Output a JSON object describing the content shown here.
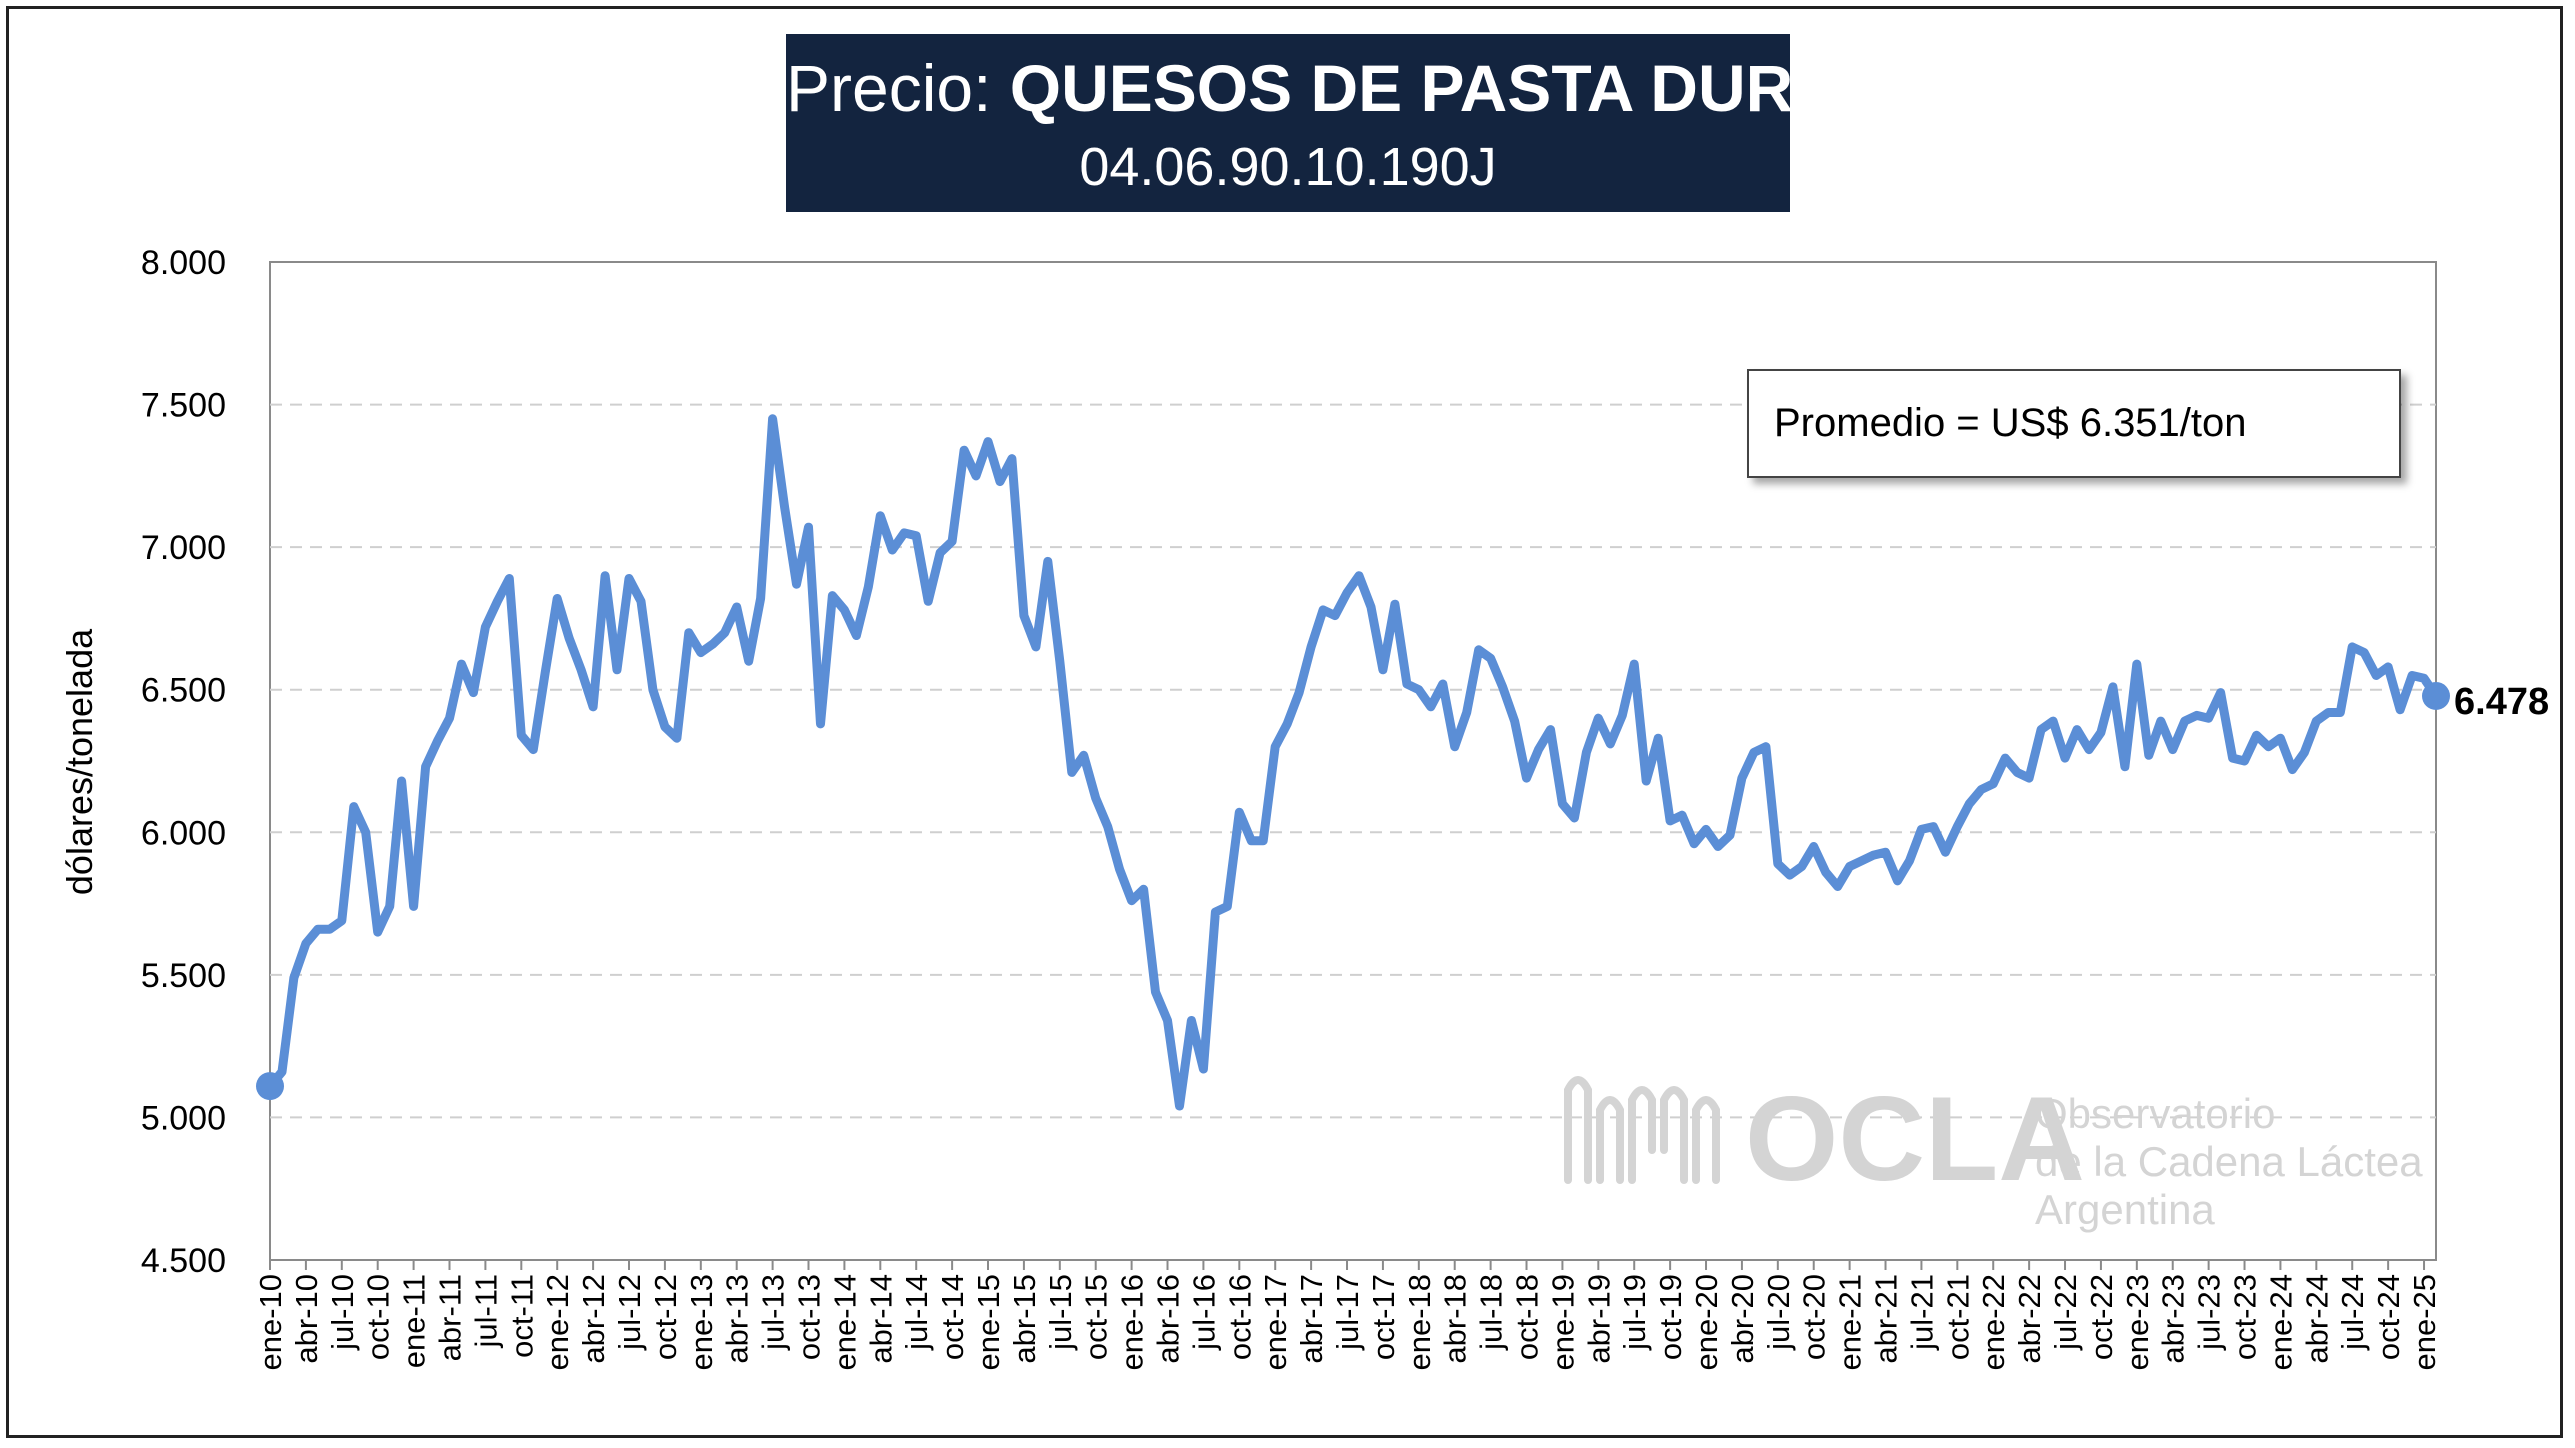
{
  "title": {
    "prefix": "Precio: ",
    "product": "QUESOS DE PASTA DURA",
    "code": "04.06.90.10.190J",
    "background": "#13243f"
  },
  "annotation": {
    "average_text": "Promedio = US$ 6.351/ton"
  },
  "end_label": "6.478",
  "watermark": {
    "logo": "OCLA",
    "line1": "Observatorio",
    "line2": "de la Cadena Láctea",
    "line3": "Argentina",
    "icon": "milk-wave-logo-icon"
  },
  "colors": {
    "line": "#5b8ed6",
    "grid": "#cfcfcf",
    "watermark": "#d4d4d4"
  },
  "chart_data": {
    "type": "line",
    "ylabel": "dólares/tonelada",
    "ylim": [
      4500,
      8000
    ],
    "yticks": [
      4500,
      5000,
      5500,
      6000,
      6500,
      7000,
      7500,
      8000
    ],
    "ytick_labels": [
      "4.500",
      "5.000",
      "5.500",
      "6.000",
      "6.500",
      "7.000",
      "7.500",
      "8.000"
    ],
    "xtick_labels": [
      "ene-10",
      "abr-10",
      "jul-10",
      "oct-10",
      "ene-11",
      "abr-11",
      "jul-11",
      "oct-11",
      "ene-12",
      "abr-12",
      "jul-12",
      "oct-12",
      "ene-13",
      "abr-13",
      "jul-13",
      "oct-13",
      "ene-14",
      "abr-14",
      "jul-14",
      "oct-14",
      "ene-15",
      "abr-15",
      "jul-15",
      "oct-15",
      "ene-16",
      "abr-16",
      "jul-16",
      "oct-16",
      "ene-17",
      "abr-17",
      "jul-17",
      "oct-17",
      "ene-18",
      "abr-18",
      "jul-18",
      "oct-18",
      "ene-19",
      "abr-19",
      "jul-19",
      "oct-19",
      "ene-20",
      "abr-20",
      "jul-20",
      "oct-20",
      "ene-21",
      "abr-21",
      "jul-21",
      "oct-21",
      "ene-22",
      "abr-22",
      "jul-22",
      "oct-22",
      "ene-23",
      "abr-23",
      "jul-23",
      "oct-23",
      "ene-24",
      "abr-24",
      "jul-24",
      "oct-24",
      "ene-25"
    ],
    "grid": "horizontal dashed",
    "series": [
      {
        "values": [
          5110,
          5160,
          5490,
          5610,
          5660,
          5660,
          5690,
          6090,
          6000,
          5650,
          5740,
          6180,
          5740,
          6230,
          6320,
          6400,
          6590,
          6490,
          6720,
          6810,
          6890,
          6340,
          6290,
          6560,
          6820,
          6680,
          6570,
          6440,
          6900,
          6570,
          6890,
          6810,
          6500,
          6370,
          6330,
          6700,
          6630,
          6660,
          6700,
          6790,
          6600,
          6820,
          7450,
          7140,
          6870,
          7070,
          6380,
          6830,
          6780,
          6690,
          6860,
          7110,
          6990,
          7050,
          7040,
          6810,
          6980,
          7020,
          7340,
          7250,
          7370,
          7230,
          7310,
          6760,
          6650,
          6950,
          6600,
          6210,
          6270,
          6120,
          6020,
          5870,
          5760,
          5800,
          5440,
          5340,
          5040,
          5340,
          5170,
          5720,
          5740,
          6070,
          5970,
          5970,
          6300,
          6380,
          6490,
          6650,
          6780,
          6760,
          6840,
          6900,
          6790,
          6570,
          6800,
          6520,
          6500,
          6440,
          6520,
          6300,
          6420,
          6640,
          6610,
          6510,
          6390,
          6190,
          6290,
          6360,
          6100,
          6050,
          6280,
          6400,
          6310,
          6410,
          6590,
          6180,
          6330,
          6040,
          6060,
          5960,
          6010,
          5950,
          5990,
          6190,
          6280,
          6300,
          5890,
          5850,
          5880,
          5950,
          5860,
          5810,
          5880,
          5900,
          5920,
          5930,
          5830,
          5900,
          6010,
          6020,
          5930,
          6020,
          6100,
          6150,
          6170,
          6260,
          6210,
          6190,
          6360,
          6390,
          6260,
          6360,
          6290,
          6350,
          6510,
          6230,
          6590,
          6270,
          6390,
          6290,
          6390,
          6410,
          6400,
          6490,
          6260,
          6250,
          6340,
          6300,
          6330,
          6220,
          6280,
          6390,
          6420,
          6420,
          6650,
          6630,
          6550,
          6580,
          6430,
          6550,
          6540,
          6478
        ]
      }
    ]
  }
}
